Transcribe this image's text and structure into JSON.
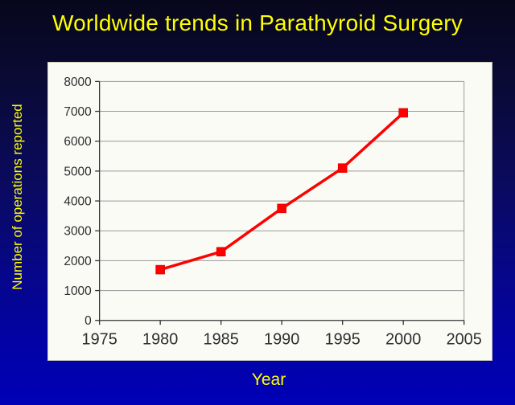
{
  "slide": {
    "title": "Worldwide trends in Parathyroid Surgery",
    "title_color": "#ffff00",
    "background_top_color": "#07071c",
    "background_bottom_color": "#0000b6"
  },
  "chart_data": {
    "type": "line",
    "title": "Worldwide trends in Parathyroid Surgery",
    "xlabel": "Year",
    "ylabel": "Number of operations reported",
    "x": [
      1980,
      1985,
      1990,
      1995,
      2000
    ],
    "series": [
      {
        "name": "Number of operations reported",
        "values": [
          1700,
          2300,
          3750,
          5100,
          6950
        ]
      }
    ],
    "xlim": [
      1975,
      2005
    ],
    "ylim": [
      0,
      8000
    ],
    "x_ticks": [
      1975,
      1980,
      1985,
      1990,
      1995,
      2000,
      2005
    ],
    "y_ticks": [
      0,
      1000,
      2000,
      3000,
      4000,
      5000,
      6000,
      7000,
      8000
    ],
    "grid": "horizontal-only",
    "legend": "none",
    "marker": "square",
    "line_color": "#ff0000",
    "marker_color": "#ff0000",
    "plot_background": "#fbfbf6",
    "gridline_color": "#989898",
    "axis_color": "#303030",
    "tick_label_color": "#2e2e2e"
  }
}
